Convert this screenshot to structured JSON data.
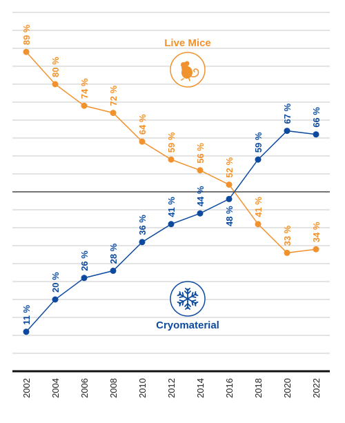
{
  "chart_data": {
    "type": "line",
    "x": [
      "2002",
      "2004",
      "2006",
      "2008",
      "2010",
      "2012",
      "2014",
      "2016",
      "2018",
      "2020",
      "2022"
    ],
    "ylim": [
      0,
      100
    ],
    "grid": true,
    "series": [
      {
        "name": "Live Mice",
        "color": "#f0922d",
        "icon": "mouse-icon",
        "values": [
          89,
          80,
          74,
          72,
          64,
          59,
          56,
          52,
          41,
          33,
          34
        ],
        "labels": [
          "89 %",
          "80 %",
          "74 %",
          "72 %",
          "64 %",
          "59 %",
          "56 %",
          "52 %",
          "41 %",
          "33 %",
          "34 %"
        ]
      },
      {
        "name": "Cryomaterial",
        "color": "#0d4a9e",
        "icon": "snowflake-icon",
        "values": [
          11,
          20,
          26,
          28,
          36,
          41,
          44,
          48,
          59,
          67,
          66
        ],
        "labels": [
          "11 %",
          "20 %",
          "26 %",
          "28 %",
          "36 %",
          "41 %",
          "44 %",
          "48 %",
          "59 %",
          "67 %",
          "66 %"
        ]
      }
    ]
  }
}
